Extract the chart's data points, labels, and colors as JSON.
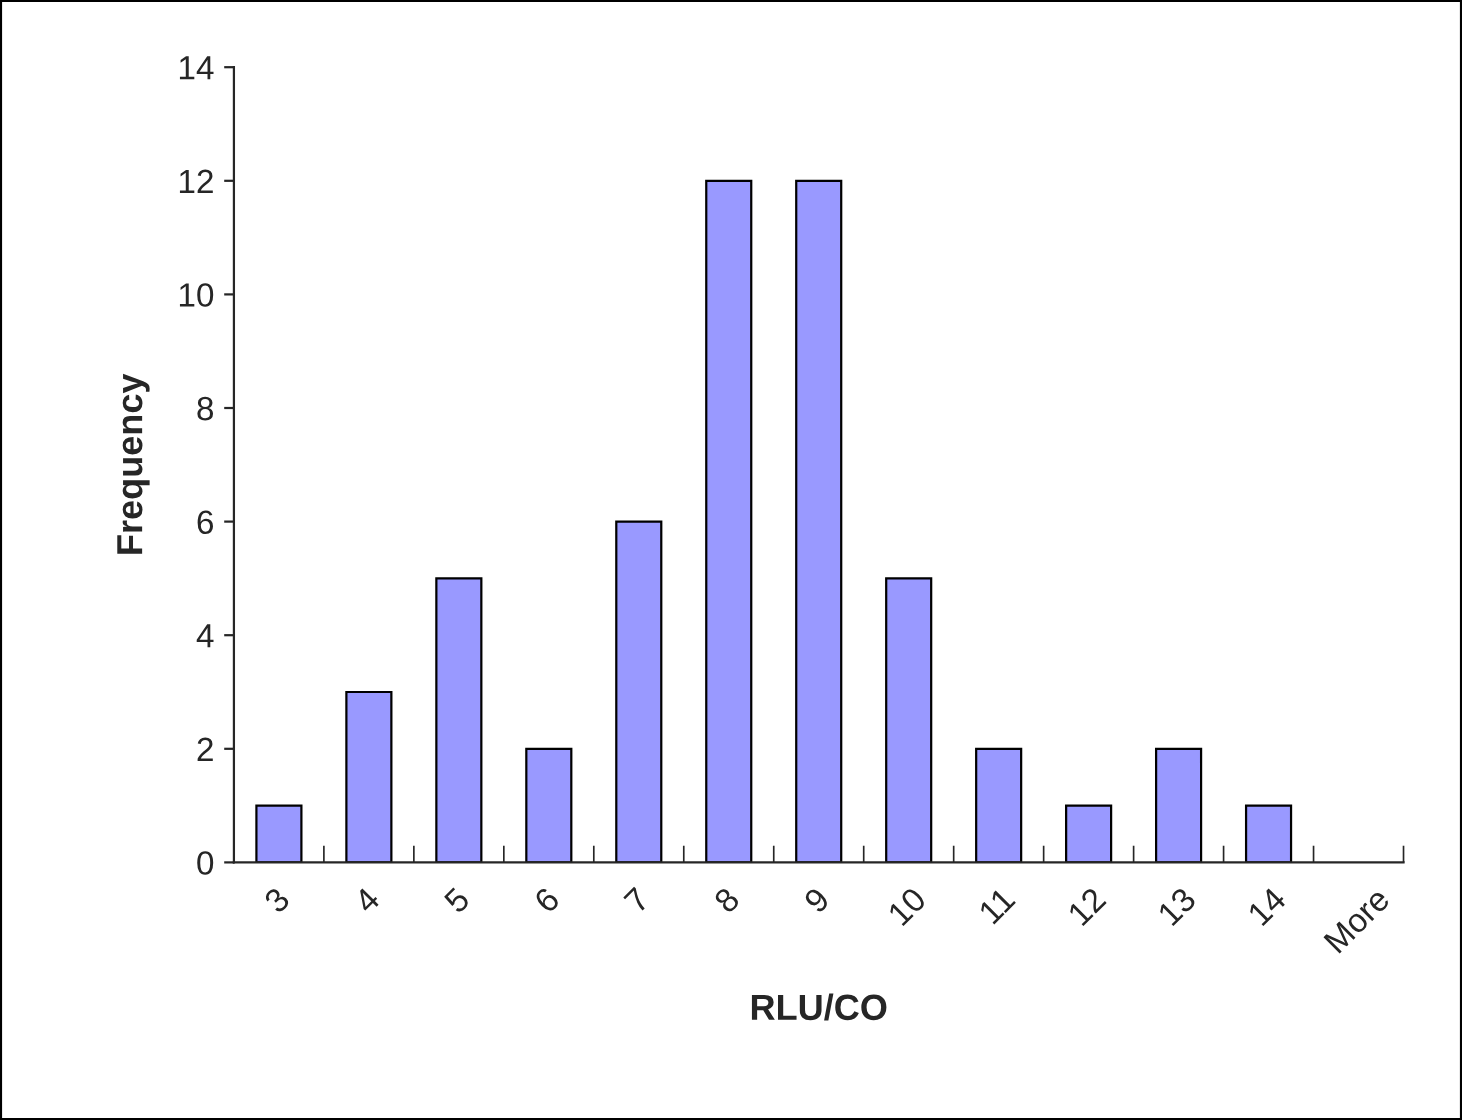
{
  "chart_data": {
    "type": "bar",
    "xlabel": "RLU/CO",
    "ylabel": "Frequency",
    "categories": [
      "3",
      "4",
      "5",
      "6",
      "7",
      "8",
      "9",
      "10",
      "11",
      "12",
      "13",
      "14",
      "More"
    ],
    "values": [
      1,
      3,
      5,
      2,
      6,
      12,
      12,
      5,
      2,
      1,
      2,
      1,
      0
    ],
    "color": "#9999ff",
    "ylim": [
      0,
      14
    ],
    "yticks": [
      0,
      2,
      4,
      6,
      8,
      10,
      12,
      14
    ],
    "grid": false,
    "legend": false
  }
}
